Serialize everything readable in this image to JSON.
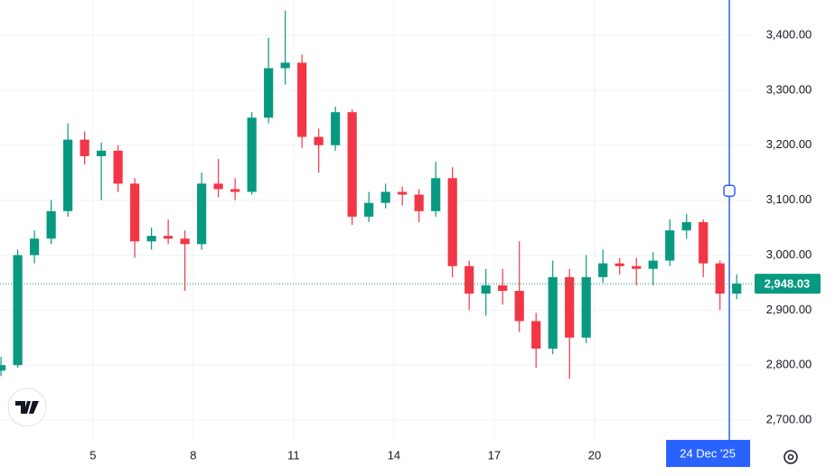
{
  "chart_data": {
    "type": "candlestick",
    "x": [
      2.25,
      2.75,
      3.25,
      3.75,
      4.25,
      4.75,
      5.25,
      5.75,
      6.25,
      6.75,
      7.25,
      7.75,
      8.25,
      8.75,
      9.25,
      9.75,
      10.25,
      10.75,
      11.25,
      11.75,
      12.25,
      12.75,
      13.25,
      13.75,
      14.25,
      14.75,
      15.25,
      15.75,
      16.25,
      16.75,
      17.25,
      17.75,
      18.25,
      18.75,
      19.25,
      19.75,
      20.25,
      20.75,
      21.25,
      21.75,
      22.25,
      22.75,
      23.25,
      23.75,
      24.25
    ],
    "open": [
      2790,
      2800,
      3000,
      3030,
      3080,
      3210,
      3180,
      3190,
      3130,
      3025,
      3035,
      3030,
      3020,
      3130,
      3120,
      3115,
      3250,
      3340,
      3350,
      3215,
      3200,
      3260,
      3070,
      3095,
      3115,
      3110,
      3080,
      3140,
      2980,
      2930,
      2945,
      2935,
      2880,
      2830,
      2960,
      2850,
      2960,
      2985,
      2980,
      2975,
      2990,
      3045,
      3060,
      2985,
      2930
    ],
    "high": [
      2815,
      3010,
      3045,
      3100,
      3240,
      3225,
      3205,
      3200,
      3140,
      3050,
      3065,
      3045,
      3150,
      3175,
      3140,
      3260,
      3395,
      3445,
      3365,
      3230,
      3270,
      3265,
      3115,
      3130,
      3125,
      3120,
      3170,
      3160,
      2990,
      2975,
      2975,
      3025,
      2895,
      2990,
      2975,
      3000,
      3010,
      2995,
      2995,
      3005,
      3065,
      3075,
      3065,
      2990,
      2965
    ],
    "low": [
      2780,
      2795,
      2985,
      3020,
      3070,
      3165,
      3100,
      3115,
      2995,
      3010,
      3020,
      2935,
      3010,
      3105,
      3100,
      3110,
      3240,
      3310,
      3195,
      3150,
      3190,
      3055,
      3060,
      3085,
      3090,
      3060,
      3070,
      2960,
      2900,
      2890,
      2910,
      2860,
      2795,
      2820,
      2775,
      2840,
      2950,
      2965,
      2945,
      2945,
      2980,
      3030,
      2960,
      2900,
      2920
    ],
    "close": [
      2800,
      3000,
      3030,
      3080,
      3210,
      3180,
      3190,
      3130,
      3025,
      3035,
      3030,
      3020,
      3130,
      3120,
      3115,
      3250,
      3340,
      3350,
      3215,
      3200,
      3260,
      3070,
      3095,
      3115,
      3110,
      3080,
      3140,
      2980,
      2930,
      2945,
      2935,
      2880,
      2830,
      2960,
      2850,
      2960,
      2985,
      2980,
      2975,
      2990,
      3045,
      3060,
      2985,
      2930,
      2948.03
    ],
    "up_color": "#089981",
    "down_color": "#f23645",
    "xlim": [
      2.22,
      24.73
    ],
    "ylim": [
      2664,
      3464
    ],
    "xticks": [
      5,
      8,
      11,
      14,
      17,
      20
    ],
    "yticks": [
      {
        "value": 2700,
        "label": "2,700.00"
      },
      {
        "value": 2800,
        "label": "2,800.00"
      },
      {
        "value": 2900,
        "label": "2,900.00"
      },
      {
        "value": 3000,
        "label": "3,000.00"
      },
      {
        "value": 3100,
        "label": "3,100.00"
      },
      {
        "value": 3200,
        "label": "3,200.00"
      },
      {
        "value": 3300,
        "label": "3,300.00"
      },
      {
        "value": 3400,
        "label": "3,400.00"
      }
    ],
    "grid": true,
    "last_price": {
      "value": 2948.03,
      "label": "2,948.03"
    },
    "crosshair": {
      "x": 24.03,
      "y": 3117,
      "label": "24 Dec '25"
    }
  }
}
